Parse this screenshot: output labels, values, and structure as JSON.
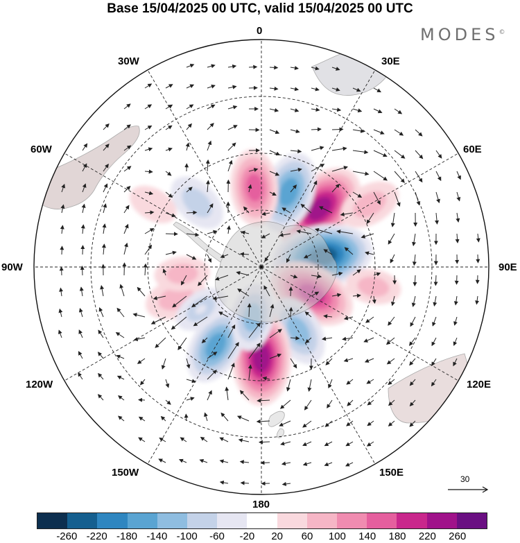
{
  "title": "Base 15/04/2025 00 UTC, valid 15/04/2025 00 UTC",
  "brand": {
    "name": "MODES",
    "mark": "©"
  },
  "longitude_labels": {
    "lon_0": "0",
    "lon_30e": "30E",
    "lon_60e": "60E",
    "lon_90e": "90E",
    "lon_120e": "120E",
    "lon_150e": "150E",
    "lon_180": "180",
    "lon_150w": "150W",
    "lon_120w": "120W",
    "lon_90w": "90W",
    "lon_60w": "60W",
    "lon_30w": "30W"
  },
  "vector_reference": {
    "value": "30"
  },
  "colorbar": {
    "colors": [
      "#0d2f4f",
      "#155f8f",
      "#2f86c0",
      "#5aa4d2",
      "#8fbde0",
      "#c4d2e8",
      "#e6e6f2",
      "#ffffff",
      "#f9d9de",
      "#f6b6c6",
      "#f08cb0",
      "#e55f9e",
      "#c9278c",
      "#a0128a",
      "#6a0f82"
    ],
    "tick_labels": [
      "-260",
      "-220",
      "-180",
      "-140",
      "-100",
      "-60",
      "-20",
      "20",
      "60",
      "100",
      "140",
      "180",
      "220",
      "260"
    ]
  },
  "anomaly_centers": [
    {
      "lon": 45,
      "colat": 14.5,
      "value": 240
    },
    {
      "lon": 80,
      "colat": 11,
      "value": -250
    },
    {
      "lon": 118,
      "colat": 10,
      "value": 200
    },
    {
      "lon": 150,
      "colat": 13,
      "value": -130
    },
    {
      "lon": 180,
      "colat": 16,
      "value": 230
    },
    {
      "lon": 210,
      "colat": 16,
      "value": -160
    },
    {
      "lon": 190,
      "colat": 9,
      "value": -110
    },
    {
      "lon": 20,
      "colat": 14,
      "value": -170
    },
    {
      "lon": -5,
      "colat": 14,
      "value": 150
    },
    {
      "lon": -45,
      "colat": 16,
      "value": -90
    },
    {
      "lon": -110,
      "colat": 16,
      "value": 90
    },
    {
      "lon": -95,
      "colat": 14,
      "value": 60
    },
    {
      "lon": -125,
      "colat": 13,
      "value": -60
    },
    {
      "lon": 60,
      "colat": 22,
      "value": 90
    },
    {
      "lon": 100,
      "colat": 20,
      "value": 60
    },
    {
      "lon": -60,
      "colat": 22,
      "value": 40
    }
  ]
}
